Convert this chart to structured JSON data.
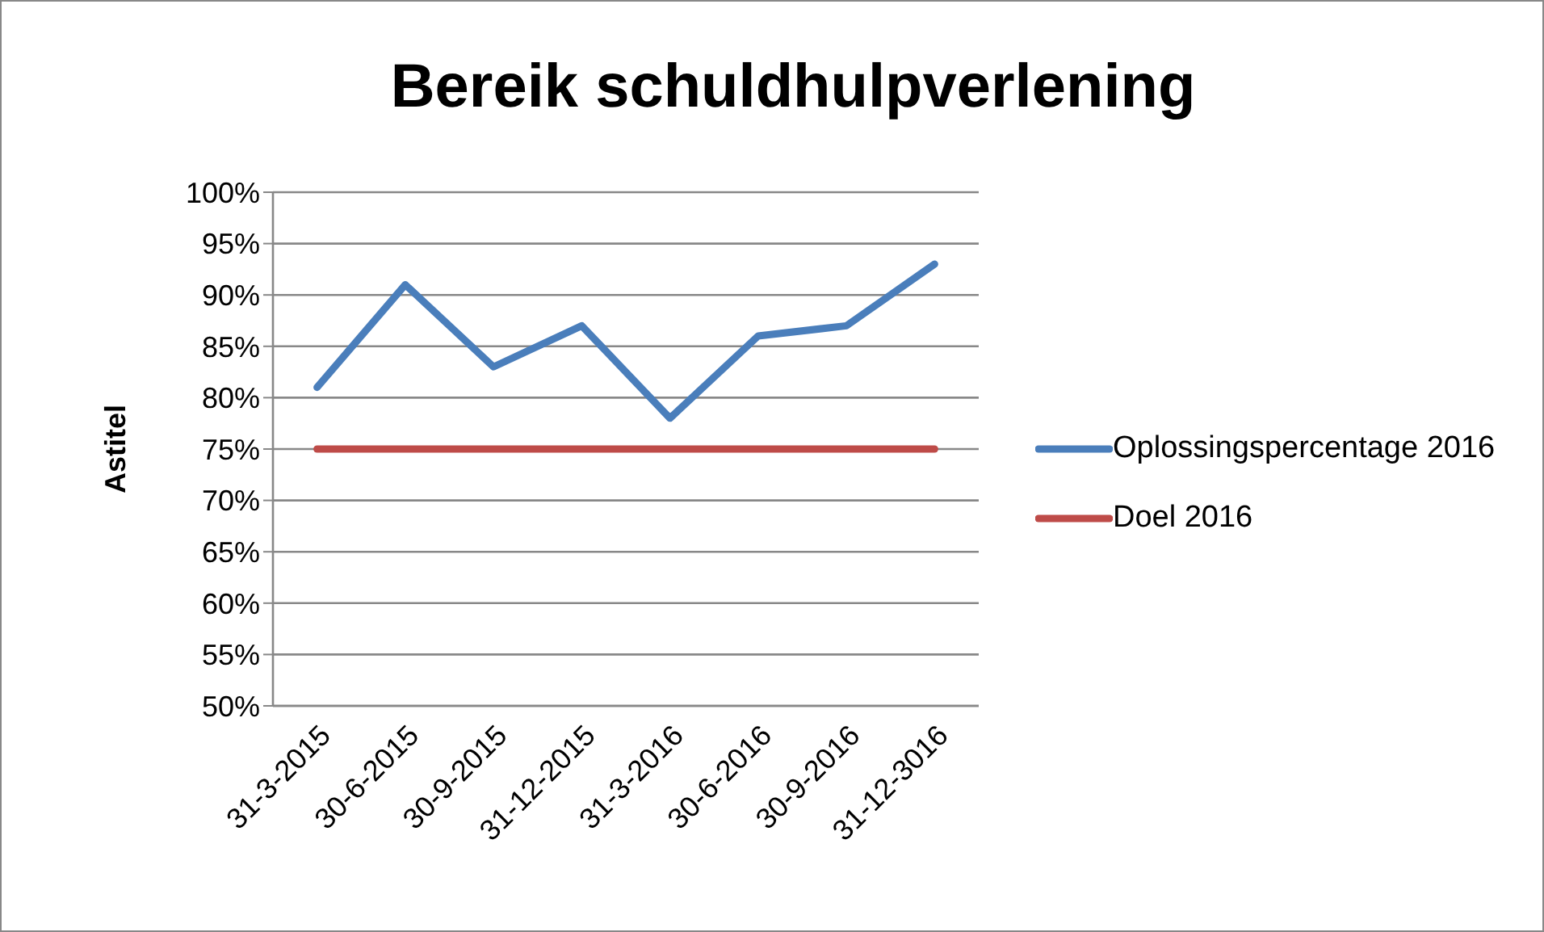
{
  "chart_data": {
    "type": "line",
    "title": "Bereik schuldhulpverlening",
    "ylabel": "Astitel",
    "categories": [
      "31-3-2015",
      "30-6-2015",
      "30-9-2015",
      "31-12-2015",
      "31-3-2016",
      "30-6-2016",
      "30-9-2016",
      "31-12-3016"
    ],
    "series": [
      {
        "name": "Oplossingspercentage 2016",
        "color": "#4a7ebb",
        "values": [
          81,
          91,
          83,
          87,
          78,
          86,
          87,
          93
        ]
      },
      {
        "name": "Doel 2016",
        "color": "#be4b48",
        "values": [
          75,
          75,
          75,
          75,
          75,
          75,
          75,
          75
        ]
      }
    ],
    "ylim": [
      50,
      100
    ],
    "yticks": [
      {
        "value": 50,
        "label": "50%"
      },
      {
        "value": 55,
        "label": "55%"
      },
      {
        "value": 60,
        "label": "60%"
      },
      {
        "value": 65,
        "label": "65%"
      },
      {
        "value": 70,
        "label": "70%"
      },
      {
        "value": 75,
        "label": "75%"
      },
      {
        "value": 80,
        "label": "80%"
      },
      {
        "value": 85,
        "label": "85%"
      },
      {
        "value": 90,
        "label": "90%"
      },
      {
        "value": 95,
        "label": "95%"
      },
      {
        "value": 100,
        "label": "100%"
      }
    ],
    "grid": "y",
    "legend": "right",
    "marker": "none",
    "line_style": "solid"
  }
}
